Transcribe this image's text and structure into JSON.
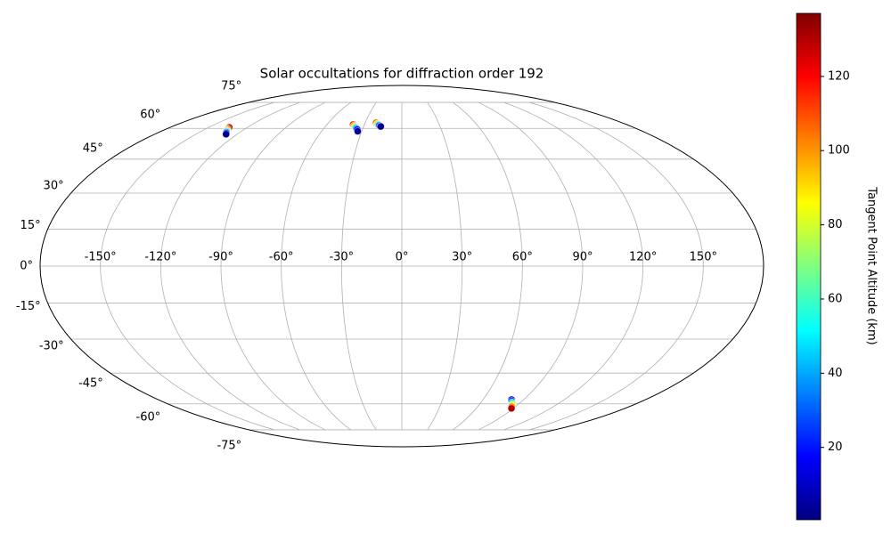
{
  "chart_data": {
    "type": "scatter",
    "projection": "mollweide",
    "title": "Solar occultations for diffraction order 192",
    "x": [
      -134,
      -133.5,
      -133,
      -132,
      -131,
      -130,
      -129,
      -128,
      -39,
      -38,
      -37,
      -36,
      -35,
      -34,
      -33,
      -21,
      -20,
      -19,
      -18,
      -17,
      -16.5,
      81,
      82,
      83.5,
      85,
      86,
      87,
      88.5
    ],
    "y": [
      60.5,
      60,
      59.5,
      59,
      58.5,
      58,
      57.5,
      57,
      62,
      61.5,
      61,
      60.5,
      60,
      59.5,
      58.5,
      63,
      62.5,
      62,
      61.5,
      61,
      61,
      -57.8,
      -58.5,
      -59.3,
      -60,
      -60.7,
      -61.5,
      -62.4
    ],
    "c": [
      135,
      115,
      95,
      75,
      55,
      35,
      15,
      3,
      120,
      100,
      80,
      60,
      40,
      20,
      5,
      110,
      90,
      60,
      30,
      10,
      3,
      5,
      25,
      45,
      65,
      85,
      105,
      130
    ],
    "colormap": "jet",
    "clim": [
      0.5,
      137
    ],
    "colorbar_label": "Tangent Point Altitude (km)",
    "colorbar_ticks": [
      20,
      40,
      60,
      80,
      100,
      120
    ],
    "xlim": [
      -180,
      180
    ],
    "ylim": [
      -90,
      90
    ],
    "xticks": [
      {
        "value": -150,
        "label": "-150°"
      },
      {
        "value": -120,
        "label": "-120°"
      },
      {
        "value": -90,
        "label": "-90°"
      },
      {
        "value": -60,
        "label": "-60°"
      },
      {
        "value": -30,
        "label": "-30°"
      },
      {
        "value": 0,
        "label": "0°"
      },
      {
        "value": 30,
        "label": "30°"
      },
      {
        "value": 60,
        "label": "60°"
      },
      {
        "value": 90,
        "label": "90°"
      },
      {
        "value": 120,
        "label": "120°"
      },
      {
        "value": 150,
        "label": "150°"
      }
    ],
    "yticks": [
      {
        "value": -75,
        "label": "-75°"
      },
      {
        "value": -60,
        "label": "-60°"
      },
      {
        "value": -45,
        "label": "-45°"
      },
      {
        "value": -30,
        "label": "-30°"
      },
      {
        "value": -15,
        "label": "-15°"
      },
      {
        "value": 0,
        "label": "0°"
      },
      {
        "value": 15,
        "label": "15°"
      },
      {
        "value": 30,
        "label": "30°"
      },
      {
        "value": 45,
        "label": "45°"
      },
      {
        "value": 60,
        "label": "60°"
      },
      {
        "value": 75,
        "label": "75°"
      }
    ],
    "grid": true
  }
}
